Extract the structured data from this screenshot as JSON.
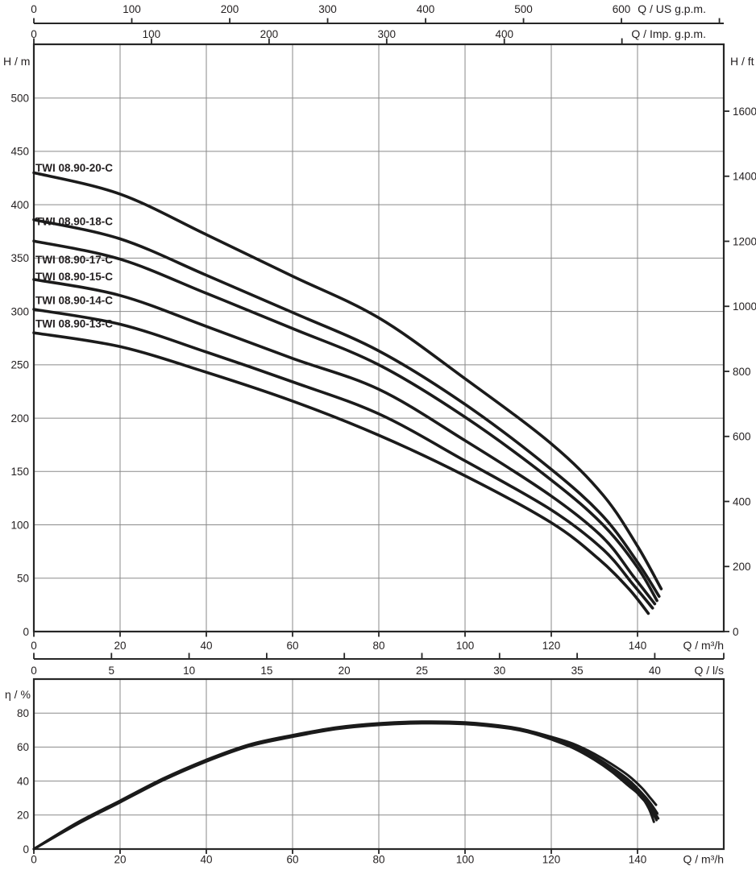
{
  "page": {
    "background": "#ffffff",
    "text_color": "#231f20",
    "grid_color": "#8a8a8a",
    "frame_color": "#262626",
    "curve_color": "#1b1b1b"
  },
  "main_chart": {
    "top_axis_us": {
      "label": "Q / US g.p.m.",
      "tick_values": [
        0,
        100,
        200,
        300,
        400,
        500,
        600,
        700
      ],
      "labeled_values": [
        0,
        100,
        200,
        300,
        400,
        500,
        600
      ],
      "m3h_per_unit": 0.22712
    },
    "top_axis_imp": {
      "label": "Q / Imp. g.p.m.",
      "tick_values": [
        0,
        100,
        200,
        300,
        400,
        500
      ],
      "labeled_values": [
        0,
        100,
        200,
        300,
        400
      ],
      "m3h_per_unit": 0.27277
    },
    "left_axis": {
      "label": "H / m",
      "tick_values": [
        0,
        50,
        100,
        150,
        200,
        250,
        300,
        350,
        400,
        450,
        500
      ]
    },
    "right_axis": {
      "label": "H / ft",
      "tick_values": [
        0,
        200,
        400,
        600,
        800,
        1000,
        1200,
        1400,
        1600
      ],
      "m_per_unit": 0.3048
    },
    "bottom_axis_m3h": {
      "label": "Q / m³/h",
      "tick_values": [
        0,
        20,
        40,
        60,
        80,
        100,
        120,
        140
      ]
    },
    "bottom_axis_ls": {
      "label": "Q / l/s",
      "tick_values": [
        0,
        5,
        10,
        15,
        20,
        25,
        30,
        35,
        40
      ],
      "m3h_per_unit": 3.6
    },
    "grid_q": [
      20,
      40,
      60,
      80,
      100,
      120,
      140
    ],
    "grid_h": [
      50,
      100,
      150,
      200,
      250,
      300,
      350,
      400,
      450,
      500
    ]
  },
  "eff_chart": {
    "left_axis": {
      "label": "η / %",
      "tick_values": [
        0,
        20,
        40,
        60,
        80
      ]
    },
    "bottom_axis": {
      "label": "Q / m³/h",
      "tick_values": [
        0,
        20,
        40,
        60,
        80,
        100,
        120,
        140
      ]
    },
    "grid_q": [
      20,
      40,
      60,
      80,
      100,
      120,
      140
    ],
    "grid_pct": [
      20,
      40,
      60,
      80
    ]
  },
  "chart_data": [
    {
      "type": "line",
      "title": "Pump head curves",
      "xlabel": "Q / m³/h",
      "ylabel": "H / m",
      "xlim": [
        0,
        160
      ],
      "ylim": [
        0,
        550
      ],
      "grid": true,
      "series": [
        {
          "name": "TWI 08.90-20-C",
          "label_h": 431,
          "points": [
            [
              0,
              430
            ],
            [
              20,
              410
            ],
            [
              40,
              372
            ],
            [
              60,
              333
            ],
            [
              80,
              294
            ],
            [
              100,
              237
            ],
            [
              120,
              176
            ],
            [
              132,
              128
            ],
            [
              140,
              80
            ],
            [
              145.5,
              40
            ]
          ]
        },
        {
          "name": "TWI 08.90-18-C",
          "label_h": 381,
          "points": [
            [
              0,
              386
            ],
            [
              20,
              368
            ],
            [
              40,
              334
            ],
            [
              60,
              299
            ],
            [
              80,
              263
            ],
            [
              100,
              213
            ],
            [
              120,
              152
            ],
            [
              132,
              108
            ],
            [
              140,
              65
            ],
            [
              145,
              33
            ]
          ]
        },
        {
          "name": "TWI 08.90-17-C",
          "label_h": 345,
          "points": [
            [
              0,
              366
            ],
            [
              20,
              349
            ],
            [
              40,
              317
            ],
            [
              60,
              284
            ],
            [
              80,
              250
            ],
            [
              100,
              201
            ],
            [
              120,
              142
            ],
            [
              132,
              100
            ],
            [
              140,
              60
            ],
            [
              144.5,
              29
            ]
          ]
        },
        {
          "name": "TWI 08.90-15-C",
          "label_h": 329,
          "points": [
            [
              0,
              330
            ],
            [
              20,
              315
            ],
            [
              40,
              286
            ],
            [
              60,
              256
            ],
            [
              80,
              227
            ],
            [
              100,
              179
            ],
            [
              120,
              127
            ],
            [
              132,
              88
            ],
            [
              139,
              52
            ],
            [
              144,
              26
            ]
          ]
        },
        {
          "name": "TWI 08.90-14-C",
          "label_h": 307,
          "points": [
            [
              0,
              302
            ],
            [
              20,
              288
            ],
            [
              40,
              262
            ],
            [
              60,
              234
            ],
            [
              80,
              204
            ],
            [
              100,
              160
            ],
            [
              120,
              114
            ],
            [
              132,
              77
            ],
            [
              139,
              44
            ],
            [
              143.5,
              22
            ]
          ]
        },
        {
          "name": "TWI 08.90-13-C",
          "label_h": 285,
          "points": [
            [
              0,
              280
            ],
            [
              20,
              267
            ],
            [
              40,
              243
            ],
            [
              60,
              216
            ],
            [
              80,
              184
            ],
            [
              100,
              146
            ],
            [
              120,
              102
            ],
            [
              131,
              68
            ],
            [
              138,
              40
            ],
            [
              142.5,
              17
            ]
          ]
        }
      ]
    },
    {
      "type": "line",
      "title": "Pump efficiency curves",
      "xlabel": "Q / m³/h",
      "ylabel": "η / %",
      "xlim": [
        0,
        160
      ],
      "ylim": [
        0,
        100
      ],
      "grid": true,
      "series": [
        {
          "name": "TWI 08.90-20-C",
          "points": [
            [
              0,
              0
            ],
            [
              10,
              15.5
            ],
            [
              20,
              28.5
            ],
            [
              30,
              41.5
            ],
            [
              40,
              52.5
            ],
            [
              50,
              61.5
            ],
            [
              60,
              67
            ],
            [
              70,
              71.5
            ],
            [
              80,
              74
            ],
            [
              90,
              75
            ],
            [
              100,
              74.5
            ],
            [
              110,
              72
            ],
            [
              115,
              69.5
            ],
            [
              120,
              66
            ],
            [
              125,
              62
            ],
            [
              130,
              56
            ],
            [
              134,
              50
            ],
            [
              138,
              43
            ],
            [
              141,
              36
            ],
            [
              143,
              30
            ],
            [
              144.3,
              26
            ]
          ]
        },
        {
          "name": "TWI 08.90-18-C",
          "points": [
            [
              0,
              0
            ],
            [
              10,
              15.3
            ],
            [
              20,
              28.3
            ],
            [
              30,
              41.3
            ],
            [
              40,
              52.3
            ],
            [
              50,
              61.3
            ],
            [
              60,
              66.8
            ],
            [
              70,
              71.3
            ],
            [
              80,
              73.8
            ],
            [
              90,
              74.8
            ],
            [
              100,
              74.3
            ],
            [
              110,
              71.8
            ],
            [
              115,
              69.3
            ],
            [
              120,
              65.5
            ],
            [
              125,
              61
            ],
            [
              130,
              54.5
            ],
            [
              134,
              48
            ],
            [
              138,
              40.5
            ],
            [
              141,
              33
            ],
            [
              143,
              27
            ],
            [
              144.6,
              21
            ]
          ]
        },
        {
          "name": "TWI 08.90-17-C",
          "points": [
            [
              0,
              0
            ],
            [
              10,
              15.1
            ],
            [
              20,
              28.1
            ],
            [
              30,
              41.1
            ],
            [
              40,
              52.1
            ],
            [
              50,
              61.1
            ],
            [
              60,
              66.6
            ],
            [
              70,
              71.1
            ],
            [
              80,
              73.6
            ],
            [
              90,
              74.6
            ],
            [
              100,
              74.1
            ],
            [
              110,
              71.6
            ],
            [
              115,
              69.1
            ],
            [
              120,
              65.5
            ],
            [
              125,
              61
            ],
            [
              130,
              54
            ],
            [
              134,
              47.5
            ],
            [
              138,
              39.5
            ],
            [
              141,
              32
            ],
            [
              143,
              25
            ],
            [
              144.8,
              18
            ]
          ]
        },
        {
          "name": "TWI 08.90-15-C",
          "points": [
            [
              0,
              0
            ],
            [
              10,
              14.9
            ],
            [
              20,
              27.9
            ],
            [
              30,
              40.9
            ],
            [
              40,
              51.9
            ],
            [
              50,
              60.9
            ],
            [
              60,
              66.4
            ],
            [
              70,
              70.9
            ],
            [
              80,
              73.4
            ],
            [
              90,
              74.4
            ],
            [
              100,
              73.9
            ],
            [
              110,
              71.4
            ],
            [
              115,
              68.9
            ],
            [
              120,
              65
            ],
            [
              125,
              60.5
            ],
            [
              130,
              53.5
            ],
            [
              134,
              47
            ],
            [
              138,
              39
            ],
            [
              141,
              31
            ],
            [
              143,
              24
            ],
            [
              144.4,
              17
            ]
          ]
        },
        {
          "name": "TWI 08.90-14-C",
          "points": [
            [
              0,
              0
            ],
            [
              10,
              14.7
            ],
            [
              20,
              27.7
            ],
            [
              30,
              40.7
            ],
            [
              40,
              51.7
            ],
            [
              50,
              60.7
            ],
            [
              60,
              66.2
            ],
            [
              70,
              70.7
            ],
            [
              80,
              73.2
            ],
            [
              90,
              74.2
            ],
            [
              100,
              73.7
            ],
            [
              110,
              71.2
            ],
            [
              115,
              68.7
            ],
            [
              120,
              65
            ],
            [
              125,
              60
            ],
            [
              130,
              53
            ],
            [
              134,
              46
            ],
            [
              138,
              38
            ],
            [
              141,
              30
            ],
            [
              142.8,
              25
            ],
            [
              144,
              19
            ]
          ]
        },
        {
          "name": "TWI 08.90-13-C",
          "points": [
            [
              0,
              0
            ],
            [
              10,
              14.5
            ],
            [
              20,
              27.5
            ],
            [
              30,
              40.5
            ],
            [
              40,
              51.5
            ],
            [
              50,
              60.5
            ],
            [
              60,
              66
            ],
            [
              70,
              70.5
            ],
            [
              80,
              73
            ],
            [
              90,
              74
            ],
            [
              100,
              73.5
            ],
            [
              110,
              71
            ],
            [
              115,
              68.5
            ],
            [
              120,
              64.5
            ],
            [
              125,
              59.5
            ],
            [
              130,
              52.5
            ],
            [
              134,
              45.5
            ],
            [
              138,
              37
            ],
            [
              140.8,
              31
            ],
            [
              142.6,
              24
            ],
            [
              143.8,
              16
            ]
          ]
        }
      ]
    }
  ]
}
